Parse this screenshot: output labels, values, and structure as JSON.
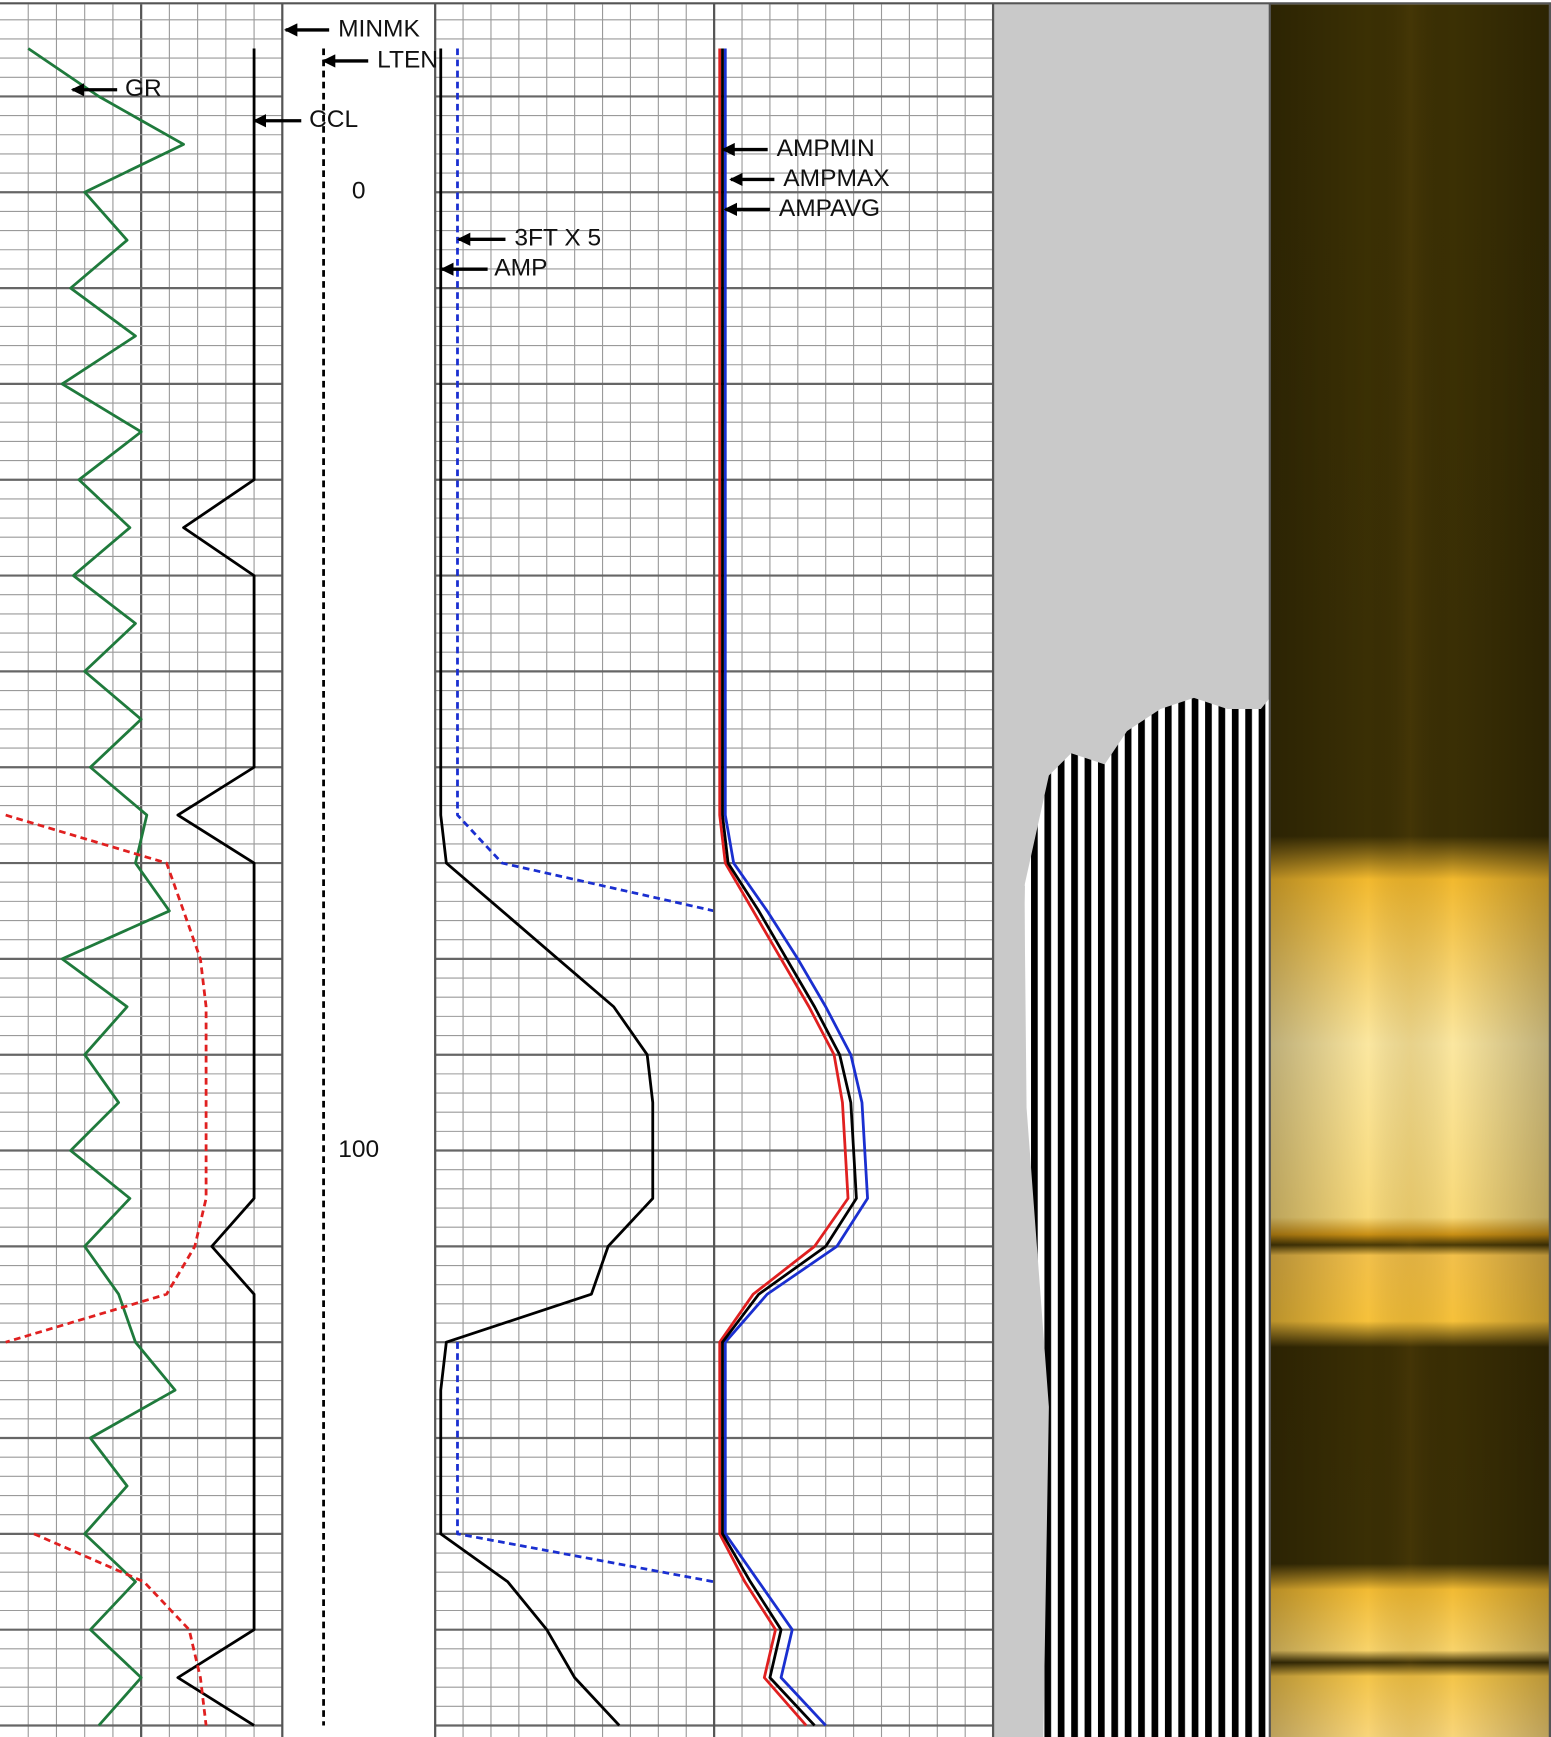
{
  "chart_data": [
    {
      "type": "line",
      "grid": true,
      "x": [
        -15,
        -10,
        -5,
        0,
        5,
        10,
        15,
        20,
        25,
        30,
        35,
        40,
        45,
        50,
        55,
        60,
        65,
        70,
        75,
        80,
        85,
        90,
        95,
        100,
        105,
        110,
        115,
        120,
        125,
        130,
        135,
        140,
        145,
        150,
        155,
        160
      ],
      "xlim": [
        -19.6,
        161.2
      ],
      "ylim": [
        0,
        10
      ],
      "annotations": [
        "MINMK"
      ],
      "series": [
        {
          "name": "GR",
          "color": "#1f7a3c",
          "style": "solid",
          "values": [
            1.0,
            3.5,
            6.5,
            3.0,
            4.5,
            2.5,
            4.8,
            2.2,
            5.0,
            2.8,
            4.6,
            2.6,
            4.8,
            3.0,
            5.0,
            3.2,
            5.2,
            4.8,
            6.0,
            2.2,
            4.5,
            3.0,
            4.2,
            2.5,
            4.6,
            3.0,
            4.2,
            4.8,
            6.2,
            3.2,
            4.5,
            3.0,
            4.8,
            3.2,
            5.0,
            3.5
          ]
        },
        {
          "name": "CCL",
          "color": "#000000",
          "style": "solid",
          "values": [
            9.0,
            9.0,
            9.0,
            9.0,
            9.0,
            9.0,
            9.0,
            9.0,
            9.0,
            9.0,
            6.5,
            9.0,
            9.0,
            9.0,
            9.0,
            9.0,
            6.3,
            9.0,
            9.0,
            9.0,
            9.0,
            9.0,
            9.0,
            9.0,
            9.0,
            7.5,
            9.0,
            9.0,
            9.0,
            9.0,
            9.0,
            9.0,
            9.0,
            9.0,
            6.3,
            9.0
          ]
        },
        {
          "color": "#e02020",
          "style": "dashed",
          "values": [
            null,
            null,
            null,
            null,
            null,
            null,
            null,
            null,
            null,
            null,
            null,
            null,
            null,
            null,
            null,
            null,
            0.2,
            5.9,
            6.5,
            7.1,
            7.3,
            7.3,
            7.3,
            7.3,
            7.3,
            6.9,
            5.9,
            0.2,
            null,
            null,
            null,
            1.2,
            5.1,
            6.7,
            7.1,
            7.3
          ]
        }
      ]
    },
    {
      "type": "line",
      "grid": false,
      "x": [
        -15,
        -10,
        -5,
        0,
        5,
        10,
        15,
        20,
        25,
        30,
        35,
        40,
        45,
        50,
        55,
        60,
        65,
        70,
        75,
        80,
        85,
        90,
        95,
        100,
        105,
        110,
        115,
        120,
        125,
        130,
        135,
        140,
        145,
        150,
        155,
        160
      ],
      "xlim": [
        -19.6,
        161.2
      ],
      "ylim": [
        0,
        10
      ],
      "xticks": [
        0,
        100
      ],
      "series": [
        {
          "name": "LTEN",
          "color": "#000000",
          "style": "dashed",
          "values": [
            2.7,
            2.7,
            2.7,
            2.7,
            2.7,
            2.7,
            2.7,
            2.7,
            2.7,
            2.7,
            2.7,
            2.7,
            2.7,
            2.7,
            2.7,
            2.7,
            2.7,
            2.7,
            2.7,
            2.7,
            2.7,
            2.7,
            2.7,
            2.7,
            2.7,
            2.7,
            2.7,
            2.7,
            2.7,
            2.7,
            2.7,
            2.7,
            2.7,
            2.7,
            2.7,
            2.7
          ]
        }
      ]
    },
    {
      "type": "line",
      "grid": true,
      "x": [
        -15,
        -10,
        -5,
        0,
        5,
        10,
        15,
        20,
        25,
        30,
        35,
        40,
        45,
        50,
        55,
        60,
        65,
        70,
        75,
        80,
        85,
        90,
        95,
        100,
        105,
        110,
        115,
        120,
        125,
        130,
        135,
        140,
        145,
        150,
        155,
        160
      ],
      "xlim": [
        -19.6,
        161.2
      ],
      "ylim": [
        0,
        10
      ],
      "series": [
        {
          "name": "AMP",
          "color": "#000000",
          "style": "solid",
          "values": [
            0.2,
            0.2,
            0.2,
            0.2,
            0.2,
            0.2,
            0.2,
            0.2,
            0.2,
            0.2,
            0.2,
            0.2,
            0.2,
            0.2,
            0.2,
            0.2,
            0.2,
            0.4,
            2.4,
            4.4,
            6.4,
            7.6,
            7.8,
            7.8,
            7.8,
            6.2,
            5.6,
            0.4,
            0.2,
            0.2,
            0.2,
            0.2,
            2.6,
            4.0,
            5.0,
            6.6
          ]
        },
        {
          "name": "3FT X 5",
          "color": "#1a2fd0",
          "style": "dashed",
          "values": [
            0.8,
            0.8,
            0.8,
            0.8,
            0.8,
            0.8,
            0.8,
            0.8,
            0.8,
            0.8,
            0.8,
            0.8,
            0.8,
            0.8,
            0.8,
            0.8,
            0.8,
            2.4,
            10,
            null,
            null,
            null,
            null,
            null,
            null,
            null,
            null,
            0.8,
            0.8,
            0.8,
            0.8,
            0.8,
            10,
            null,
            null,
            null
          ]
        }
      ]
    },
    {
      "type": "line",
      "grid": true,
      "x": [
        -15,
        -10,
        -5,
        0,
        5,
        10,
        15,
        20,
        25,
        30,
        35,
        40,
        45,
        50,
        55,
        60,
        65,
        70,
        75,
        80,
        85,
        90,
        95,
        100,
        105,
        110,
        115,
        120,
        125,
        130,
        135,
        140,
        145,
        150,
        155,
        160
      ],
      "xlim": [
        -19.6,
        161.2
      ],
      "ylim": [
        0,
        10
      ],
      "series": [
        {
          "name": "AMPMIN",
          "color": "#e02020",
          "style": "solid",
          "values": [
            0.2,
            0.2,
            0.2,
            0.2,
            0.2,
            0.2,
            0.2,
            0.2,
            0.2,
            0.2,
            0.2,
            0.2,
            0.2,
            0.2,
            0.2,
            0.2,
            0.2,
            0.4,
            1.4,
            2.4,
            3.4,
            4.3,
            4.6,
            4.7,
            4.8,
            3.6,
            1.4,
            0.2,
            0.2,
            0.2,
            0.2,
            0.2,
            1.1,
            2.2,
            1.8,
            3.3
          ]
        },
        {
          "name": "AMPMAX",
          "color": "#1a2fd0",
          "style": "solid",
          "values": [
            0.4,
            0.4,
            0.4,
            0.4,
            0.4,
            0.4,
            0.4,
            0.4,
            0.4,
            0.4,
            0.4,
            0.4,
            0.4,
            0.4,
            0.4,
            0.4,
            0.4,
            0.7,
            1.9,
            3.0,
            4.0,
            4.9,
            5.3,
            5.4,
            5.5,
            4.4,
            1.9,
            0.4,
            0.4,
            0.4,
            0.4,
            0.4,
            1.6,
            2.8,
            2.4,
            4.0
          ]
        },
        {
          "name": "AMPAVG",
          "color": "#000000",
          "style": "solid",
          "values": [
            0.3,
            0.3,
            0.3,
            0.3,
            0.3,
            0.3,
            0.3,
            0.3,
            0.3,
            0.3,
            0.3,
            0.3,
            0.3,
            0.3,
            0.3,
            0.3,
            0.3,
            0.5,
            1.6,
            2.6,
            3.6,
            4.5,
            4.9,
            5.0,
            5.1,
            4.0,
            1.6,
            0.3,
            0.3,
            0.3,
            0.3,
            0.3,
            1.3,
            2.4,
            2.0,
            3.6
          ]
        }
      ]
    }
  ]
}
